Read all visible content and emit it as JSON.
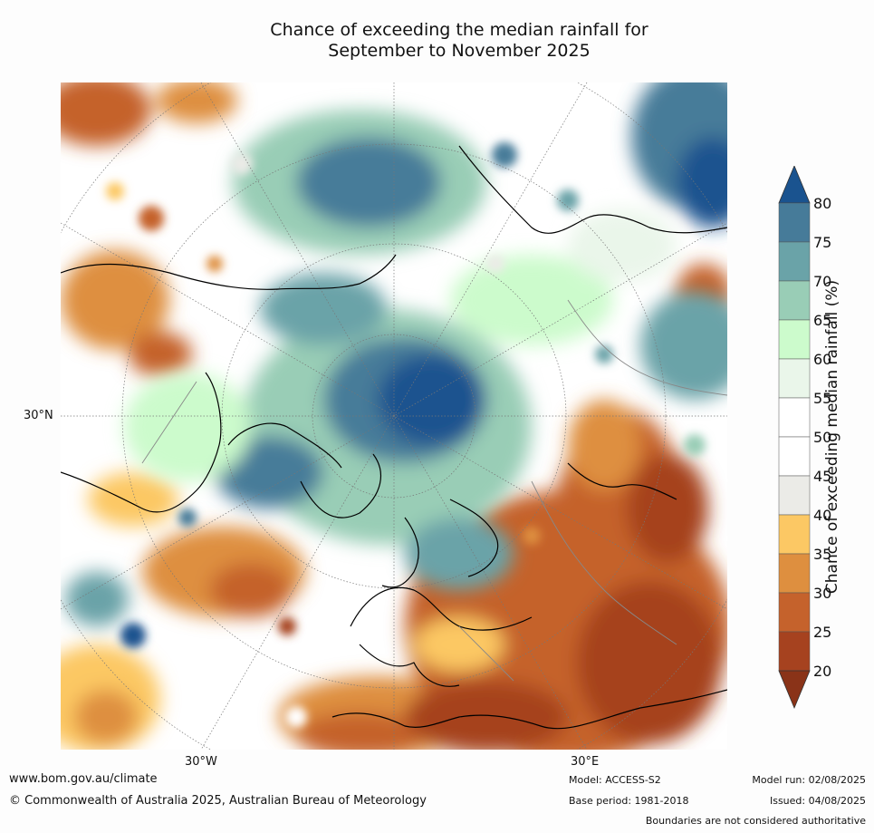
{
  "title_line1": "Chance of exceeding the median rainfall for",
  "title_line2": "September to November 2025",
  "map": {
    "lat_label": "30°N",
    "lon_labels": [
      "30°W",
      "30°E"
    ],
    "projection": "north-polar-stereographic",
    "land_color_boundaries": "#000000"
  },
  "colorbar": {
    "label": "Chance of exceeding median rainfall (%)",
    "ticks": [
      "20",
      "25",
      "30",
      "35",
      "40",
      "45",
      "50",
      "55",
      "60",
      "65",
      "70",
      "75",
      "80"
    ],
    "colors": [
      "#8a3318",
      "#a6421f",
      "#c5622c",
      "#de8f3f",
      "#fcc864",
      "#ebebe7",
      "#ffffff",
      "#ffffff",
      "#eaf6ea",
      "#ccfbcc",
      "#99cdb6",
      "#6aa3a8",
      "#467b99",
      "#1a538f"
    ],
    "extend": "both"
  },
  "footer": {
    "url": "www.bom.gov.au/climate",
    "copyright": "© Commonwealth of Australia 2025, Australian Bureau of Meteorology",
    "model": "Model: ACCESS-S2",
    "base_period": "Base period: 1981-2018",
    "model_run": "Model run: 02/08/2025",
    "issued": "Issued: 04/08/2025",
    "disclaimer": "Boundaries are not considered authoritative"
  }
}
